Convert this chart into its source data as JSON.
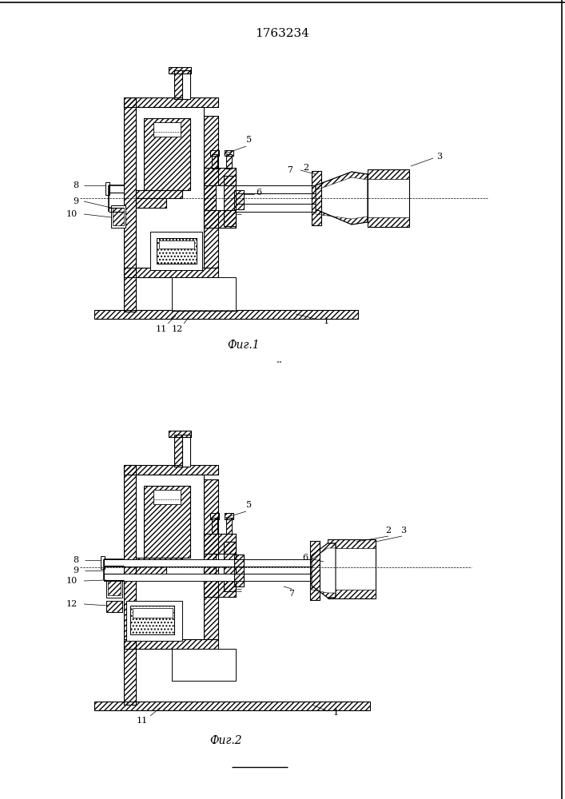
{
  "title": "1763234",
  "fig1_label": "Фиг.1",
  "fig2_label": "Фиг.2",
  "bg_color": "#ffffff",
  "figsize": [
    7.07,
    10.0
  ],
  "dpi": 100
}
